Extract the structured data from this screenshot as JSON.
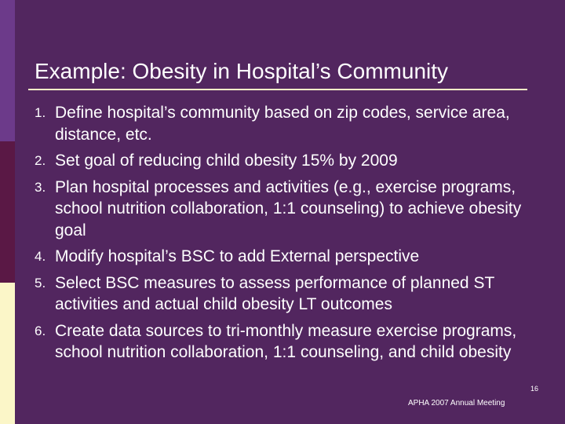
{
  "slide": {
    "title": "Example: Obesity in Hospital’s Community",
    "items": [
      {
        "number": "1.",
        "text": "Define hospital’s community based on zip codes, service area, distance, etc."
      },
      {
        "number": "2.",
        "text": "Set goal of reducing child obesity 15% by 2009"
      },
      {
        "number": "3.",
        "text": "Plan hospital processes and activities (e.g., exercise programs, school nutrition collaboration, 1:1 counseling) to achieve obesity goal"
      },
      {
        "number": "4.",
        "text": "Modify hospital’s BSC to add External perspective"
      },
      {
        "number": "5.",
        "text": "Select BSC measures to assess performance of planned ST activities and actual child obesity LT outcomes"
      },
      {
        "number": "6.",
        "text": "Create data sources to tri-monthly measure exercise programs, school nutrition collaboration, 1:1 counseling, and child obesity"
      }
    ],
    "footer": "APHA 2007 Annual Meeting",
    "page_number": "16"
  },
  "colors": {
    "background": "#52265f",
    "accent_bar_top": "#6c3a8a",
    "accent_bar_mid": "#5a1845",
    "accent_bar_bottom": "#fbf6c8",
    "title_rule": "#fbf6c8",
    "text": "#ffffff"
  }
}
